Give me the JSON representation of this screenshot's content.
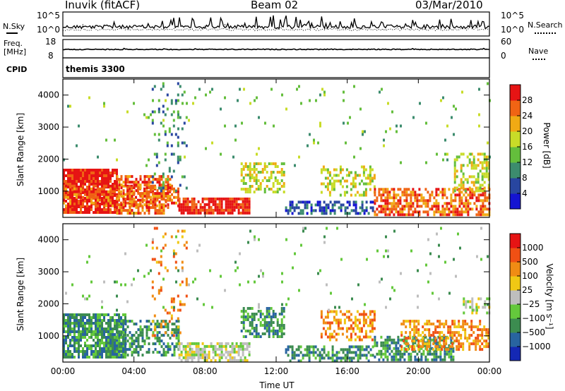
{
  "header": {
    "station": "Inuvik (fitACF)",
    "beam": "Beam 02",
    "date": "03/Mar/2010"
  },
  "top_panels": {
    "nsky_label": "N.Sky",
    "nsky_ticks": [
      "10^5",
      "10^0"
    ],
    "nsearch_label": "N.Search",
    "nsearch_ticks": [
      "10^5",
      "10^0"
    ],
    "freq_label": "Freq.",
    "freq_unit": "[MHz]",
    "freq_ticks": [
      "18",
      "8"
    ],
    "nave_label": "Nave",
    "nave_ticks": [
      "60",
      "0"
    ],
    "cpid_label": "CPID",
    "cpid_value": "themis 3300"
  },
  "chart_data": [
    {
      "type": "heatmap",
      "name": "power",
      "xlabel": "",
      "ylabel": "Slant Range [km]",
      "xlim": [
        0,
        24
      ],
      "ylim": [
        180,
        4500
      ],
      "yticks": [
        "1000",
        "2000",
        "3000",
        "4000"
      ],
      "colorbar_label": "Power [dB]",
      "colorbar_ticks": [
        "28",
        "24",
        "20",
        "16",
        "12",
        "8",
        "4"
      ],
      "colorbar_colors": [
        "#1414d2",
        "#2846a0",
        "#3c8c6e",
        "#64be3c",
        "#c8dc28",
        "#f0aa14",
        "#f06414",
        "#e61414"
      ],
      "clusters": [
        {
          "x": [
            0.0,
            3.0
          ],
          "y": [
            300,
            1700
          ],
          "level": 7,
          "density": 0.88
        },
        {
          "x": [
            0.0,
            6.5
          ],
          "y": [
            500,
            1200
          ],
          "level": 6,
          "density": 0.55
        },
        {
          "x": [
            3.0,
            6.0
          ],
          "y": [
            300,
            1500
          ],
          "level": 6,
          "density": 0.6
        },
        {
          "x": [
            6.5,
            10.5
          ],
          "y": [
            280,
            800
          ],
          "level": 7,
          "density": 0.82
        },
        {
          "x": [
            10.0,
            12.5
          ],
          "y": [
            1000,
            1900
          ],
          "level": 4,
          "density": 0.5
        },
        {
          "x": [
            12.5,
            17.5
          ],
          "y": [
            280,
            700
          ],
          "level": 1,
          "density": 0.55
        },
        {
          "x": [
            14.5,
            17.5
          ],
          "y": [
            900,
            1800
          ],
          "level": 4,
          "density": 0.35
        },
        {
          "x": [
            17.5,
            24.0
          ],
          "y": [
            300,
            1100
          ],
          "level": 6,
          "density": 0.62
        },
        {
          "x": [
            22.0,
            24.0
          ],
          "y": [
            1000,
            2200
          ],
          "level": 4,
          "density": 0.4
        },
        {
          "x": [
            0.0,
            24.0
          ],
          "y": [
            1800,
            4400
          ],
          "level": 3,
          "density": 0.018
        },
        {
          "x": [
            5.0,
            7.0
          ],
          "y": [
            1000,
            4400
          ],
          "level": 2,
          "density": 0.12
        }
      ]
    },
    {
      "type": "heatmap",
      "name": "velocity",
      "xlabel": "Time UT",
      "ylabel": "Slant Range [km]",
      "xlim": [
        0,
        24
      ],
      "ylim": [
        180,
        4500
      ],
      "xticks": [
        "00:00",
        "04:00",
        "08:00",
        "12:00",
        "16:00",
        "20:00",
        "00:00"
      ],
      "yticks": [
        "1000",
        "2000",
        "3000",
        "4000"
      ],
      "colorbar_label": "Velocity [m s⁻¹]",
      "colorbar_ticks": [
        "1000",
        "500",
        "100",
        "25",
        "−25",
        "−100",
        "−500",
        "−1000"
      ],
      "colorbar_colors": [
        "#1428b4",
        "#2864a0",
        "#3c8c50",
        "#64c83c",
        "#bebebe",
        "#f0c814",
        "#f08c14",
        "#f05014",
        "#e61414"
      ],
      "clusters": [
        {
          "x": [
            0.0,
            3.5
          ],
          "y": [
            300,
            1700
          ],
          "level": 2,
          "density": 0.82
        },
        {
          "x": [
            3.0,
            6.5
          ],
          "y": [
            400,
            1500
          ],
          "level": 2,
          "density": 0.5
        },
        {
          "x": [
            6.5,
            10.5
          ],
          "y": [
            200,
            800
          ],
          "level": 4,
          "density": 0.65
        },
        {
          "x": [
            10.0,
            12.5
          ],
          "y": [
            1000,
            1900
          ],
          "level": 2,
          "density": 0.55
        },
        {
          "x": [
            12.5,
            17.5
          ],
          "y": [
            250,
            700
          ],
          "level": 2,
          "density": 0.5
        },
        {
          "x": [
            14.5,
            17.5
          ],
          "y": [
            900,
            1800
          ],
          "level": 6,
          "density": 0.4
        },
        {
          "x": [
            17.5,
            22.0
          ],
          "y": [
            250,
            1000
          ],
          "level": 2,
          "density": 0.6
        },
        {
          "x": [
            19.0,
            24.0
          ],
          "y": [
            600,
            1500
          ],
          "level": 6,
          "density": 0.5
        },
        {
          "x": [
            22.5,
            24.0
          ],
          "y": [
            1700,
            2200
          ],
          "level": 4,
          "density": 0.55
        },
        {
          "x": [
            0.0,
            24.0
          ],
          "y": [
            1800,
            4400
          ],
          "level": 3,
          "density": 0.018
        },
        {
          "x": [
            5.0,
            7.0
          ],
          "y": [
            1000,
            4400
          ],
          "level": 6,
          "density": 0.1
        }
      ]
    }
  ]
}
